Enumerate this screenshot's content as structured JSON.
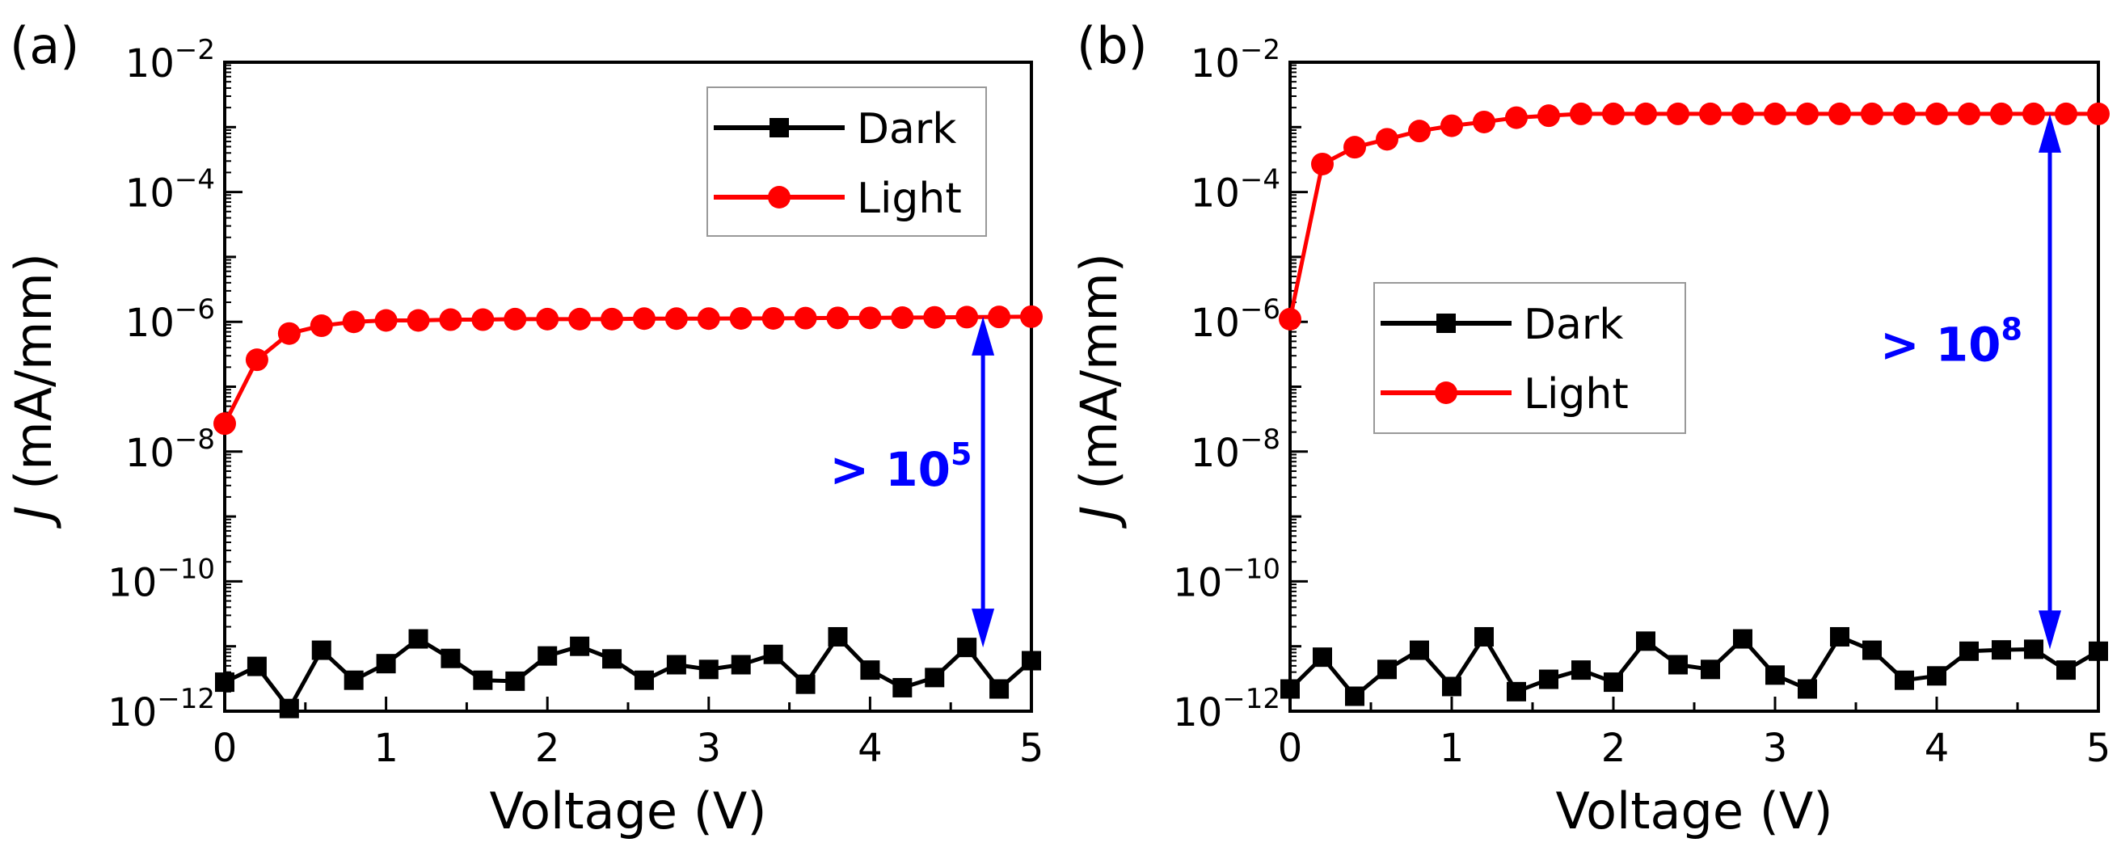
{
  "chart_data": [
    {
      "type": "line",
      "panel_label": "(a)",
      "xlabel": "Voltage (V)",
      "ylabel_italic": "J",
      "ylabel_rest": " (mA/mm)",
      "xlim": [
        0,
        5
      ],
      "ylim": [
        1e-12,
        0.01
      ],
      "yscale": "log",
      "xticks": [
        "0",
        "1",
        "2",
        "3",
        "4",
        "5"
      ],
      "yticks": [
        {
          "base": "10",
          "exp": "−2",
          "value": 0.01
        },
        {
          "base": "10",
          "exp": "−4",
          "value": 0.0001
        },
        {
          "base": "10",
          "exp": "−6",
          "value": 1e-06
        },
        {
          "base": "10",
          "exp": "−8",
          "value": 1e-08
        },
        {
          "base": "10",
          "exp": "−10",
          "value": 1e-10
        },
        {
          "base": "10",
          "exp": "−12",
          "value": 1e-12
        }
      ],
      "legend_position": "top-right",
      "x": [
        0,
        0.2,
        0.4,
        0.6,
        0.8,
        1.0,
        1.2,
        1.4,
        1.6,
        1.8,
        2.0,
        2.2,
        2.4,
        2.6,
        2.8,
        3.0,
        3.2,
        3.4,
        3.6,
        3.8,
        4.0,
        4.2,
        4.4,
        4.6,
        4.8,
        5.0
      ],
      "series": [
        {
          "name": "Dark",
          "color": "#000000",
          "marker": "square",
          "values": [
            2.8e-12,
            4.9e-12,
            1.1e-12,
            8.7e-12,
            3e-12,
            5.4e-12,
            1.3e-11,
            6.5e-12,
            3e-12,
            2.9e-12,
            7.1e-12,
            1e-11,
            6.4e-12,
            3e-12,
            5.2e-12,
            4.4e-12,
            5.2e-12,
            7.5e-12,
            2.6e-12,
            1.4e-11,
            4.3e-12,
            2.3e-12,
            3.3e-12,
            9.6e-12,
            2.2e-12,
            6e-12
          ]
        },
        {
          "name": "Light",
          "color": "#ff0000",
          "marker": "circle",
          "values": [
            2.7e-08,
            2.6e-07,
            6.6e-07,
            8.7e-07,
            1e-06,
            1.05e-06,
            1.05e-06,
            1.08e-06,
            1.08e-06,
            1.1e-06,
            1.1e-06,
            1.1e-06,
            1.1e-06,
            1.12e-06,
            1.12e-06,
            1.12e-06,
            1.13e-06,
            1.13e-06,
            1.14e-06,
            1.15e-06,
            1.15e-06,
            1.16e-06,
            1.17e-06,
            1.18e-06,
            1.19e-06,
            1.2e-06
          ]
        }
      ],
      "annotation": {
        "text": "> 10",
        "exp": "5",
        "color": "#0000ff",
        "arrow_x": 4.7,
        "arrow_from": 1.2e-06,
        "arrow_to": 9.6e-12,
        "text_x": 3.75,
        "text_y": 3e-09
      }
    },
    {
      "type": "line",
      "panel_label": "(b)",
      "xlabel": "Voltage (V)",
      "ylabel_italic": "J",
      "ylabel_rest": " (mA/mm)",
      "xlim": [
        0,
        5
      ],
      "ylim": [
        1e-12,
        0.01
      ],
      "yscale": "log",
      "xticks": [
        "0",
        "1",
        "2",
        "3",
        "4",
        "5"
      ],
      "yticks": [
        {
          "base": "10",
          "exp": "−2",
          "value": 0.01
        },
        {
          "base": "10",
          "exp": "−4",
          "value": 0.0001
        },
        {
          "base": "10",
          "exp": "−6",
          "value": 1e-06
        },
        {
          "base": "10",
          "exp": "−8",
          "value": 1e-08
        },
        {
          "base": "10",
          "exp": "−10",
          "value": 1e-10
        },
        {
          "base": "10",
          "exp": "−12",
          "value": 1e-12
        }
      ],
      "legend_position": "center-left",
      "x": [
        0,
        0.2,
        0.4,
        0.6,
        0.8,
        1.0,
        1.2,
        1.4,
        1.6,
        1.8,
        2.0,
        2.2,
        2.4,
        2.6,
        2.8,
        3.0,
        3.2,
        3.4,
        3.6,
        3.8,
        4.0,
        4.2,
        4.4,
        4.6,
        4.8,
        5.0
      ],
      "series": [
        {
          "name": "Dark",
          "color": "#000000",
          "marker": "square",
          "values": [
            2.2e-12,
            6.8e-12,
            1.7e-12,
            4.4e-12,
            8.7e-12,
            2.4e-12,
            1.4e-11,
            2e-12,
            3.1e-12,
            4.3e-12,
            2.8e-12,
            1.2e-11,
            5.2e-12,
            4.4e-12,
            1.3e-11,
            3.6e-12,
            2.2e-12,
            1.4e-11,
            8.7e-12,
            3e-12,
            3.5e-12,
            8.4e-12,
            8.8e-12,
            9e-12,
            4.3e-12,
            8.4e-12
          ]
        },
        {
          "name": "Light",
          "color": "#ff0000",
          "marker": "circle",
          "values": [
            1.1e-06,
            0.00027,
            0.00049,
            0.00065,
            0.00087,
            0.00105,
            0.0012,
            0.0014,
            0.0015,
            0.0016,
            0.0016,
            0.0016,
            0.0016,
            0.0016,
            0.0016,
            0.0016,
            0.0016,
            0.0016,
            0.0016,
            0.0016,
            0.0016,
            0.0016,
            0.0016,
            0.0016,
            0.0016,
            0.0016
          ]
        }
      ],
      "annotation": {
        "text": "> 10",
        "exp": "8",
        "color": "#0000ff",
        "arrow_x": 4.7,
        "arrow_from": 0.0016,
        "arrow_to": 9e-12,
        "text_x": 3.65,
        "text_y": 2.5e-07
      }
    }
  ]
}
